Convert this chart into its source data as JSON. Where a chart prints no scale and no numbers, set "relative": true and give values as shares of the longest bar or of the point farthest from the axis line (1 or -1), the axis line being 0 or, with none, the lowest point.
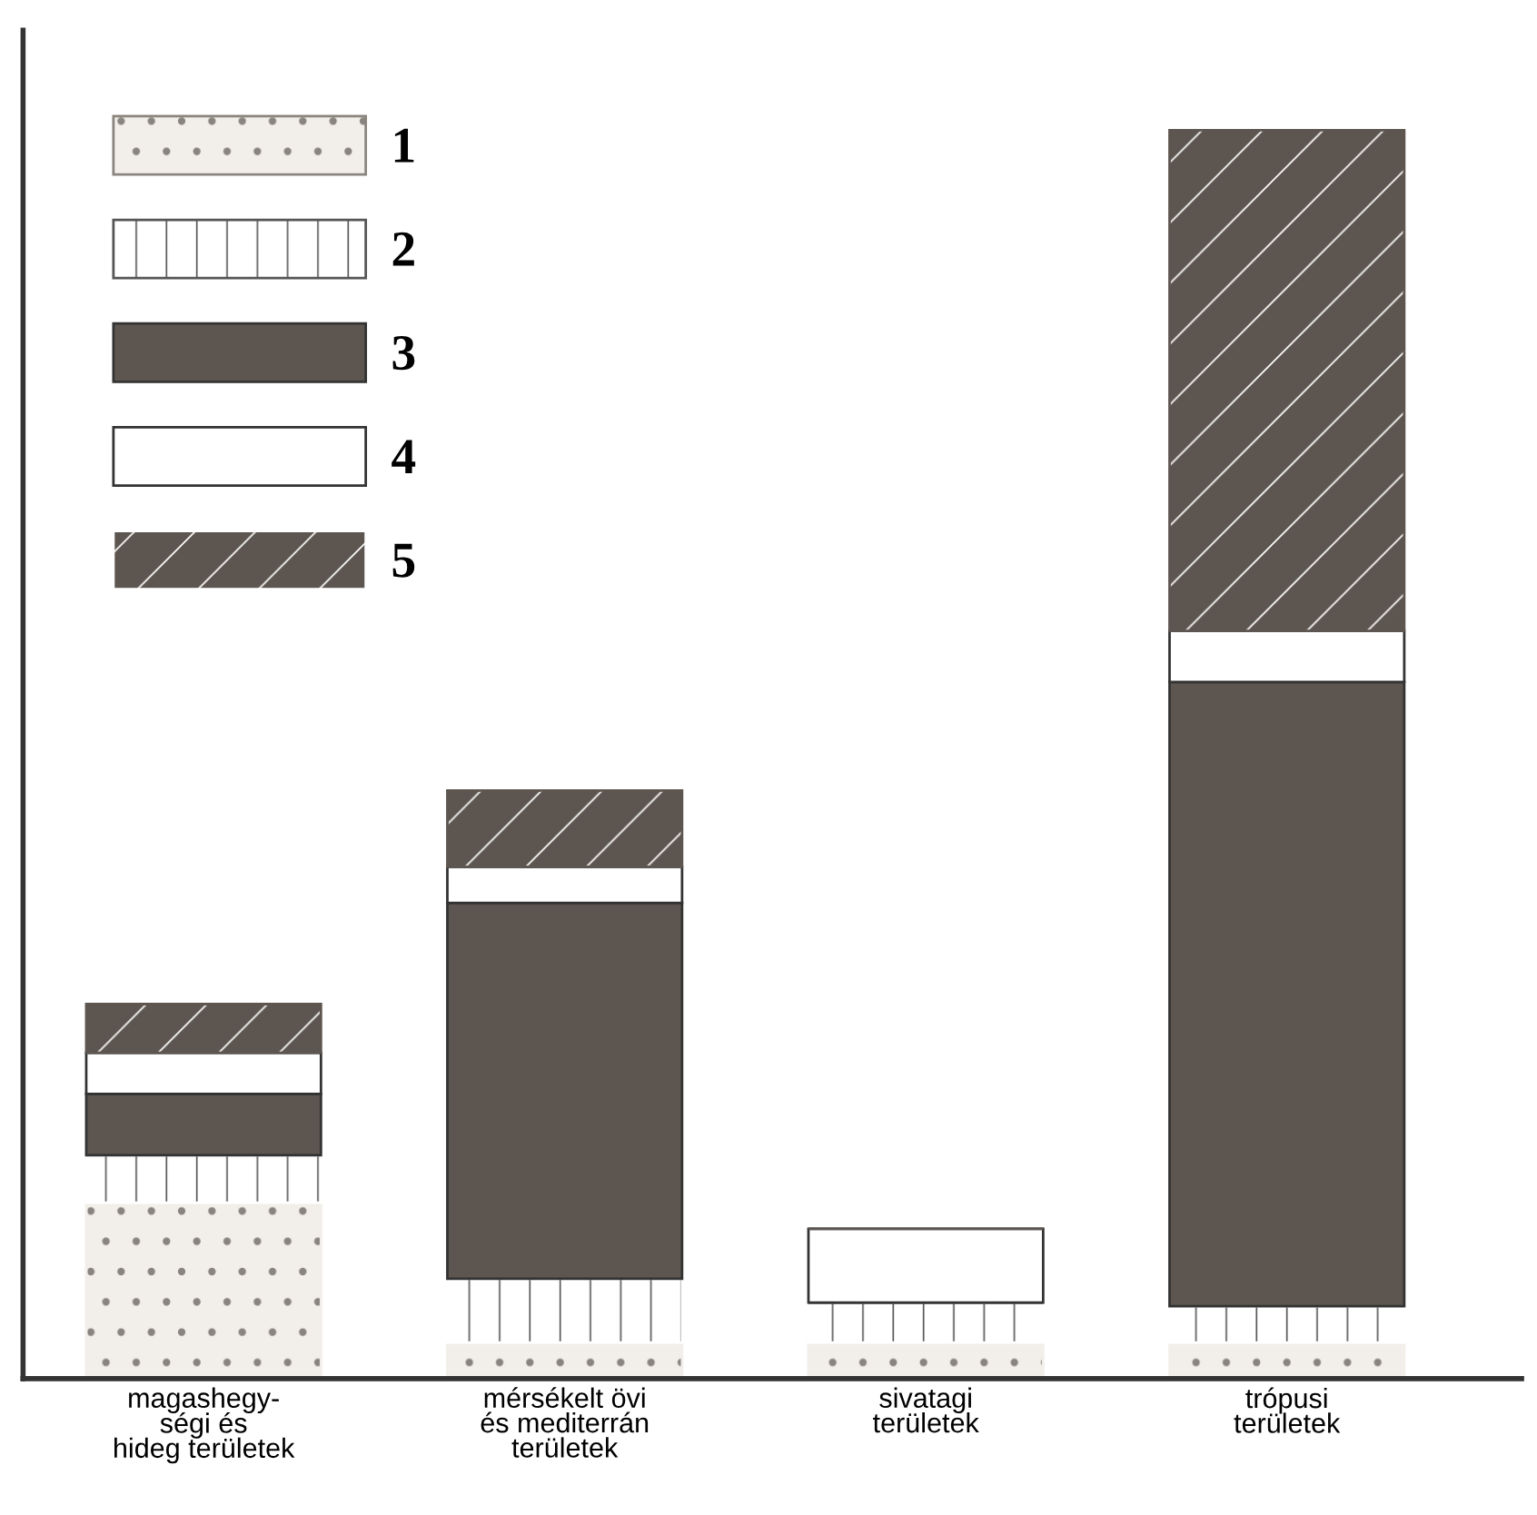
{
  "chart_data": {
    "type": "bar",
    "stacked": true,
    "relative": true,
    "legend": "top left",
    "categories": [
      "magashegy-\nségi és\nhideg területek",
      "mérsékelt övi\nés mediterrán\nterületek",
      "sivatagi\nterületek",
      "trópusi\nterületek"
    ],
    "series": [
      {
        "name": "1",
        "color": "#f2efea",
        "values": [
          0.141,
          0.029,
          0.029,
          0.029
        ]
      },
      {
        "name": "2",
        "color": "#ffffff",
        "values": [
          0.038,
          0.051,
          0.032,
          0.029
        ]
      },
      {
        "name": "3",
        "color": "#5d5650",
        "values": [
          0.049,
          0.301,
          0,
          0.5
        ]
      },
      {
        "name": "4",
        "color": "#ffffff",
        "values": [
          0.033,
          0.029,
          0.059,
          0.041
        ]
      },
      {
        "name": "5",
        "color": "#5d5650",
        "values": [
          0.039,
          0.061,
          0,
          0.401
        ]
      }
    ]
  }
}
